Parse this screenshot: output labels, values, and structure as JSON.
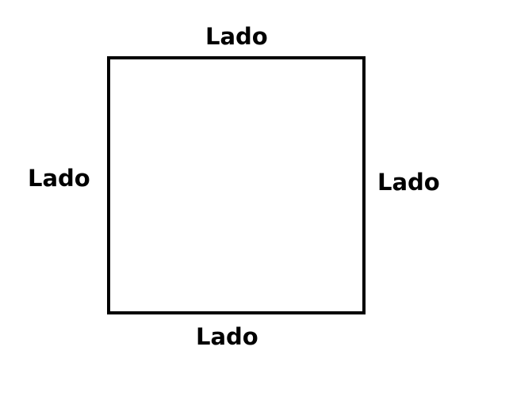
{
  "diagram": {
    "shape": "square",
    "labels": {
      "top": "Lado",
      "left": "Lado",
      "right": "Lado",
      "bottom": "Lado"
    }
  }
}
